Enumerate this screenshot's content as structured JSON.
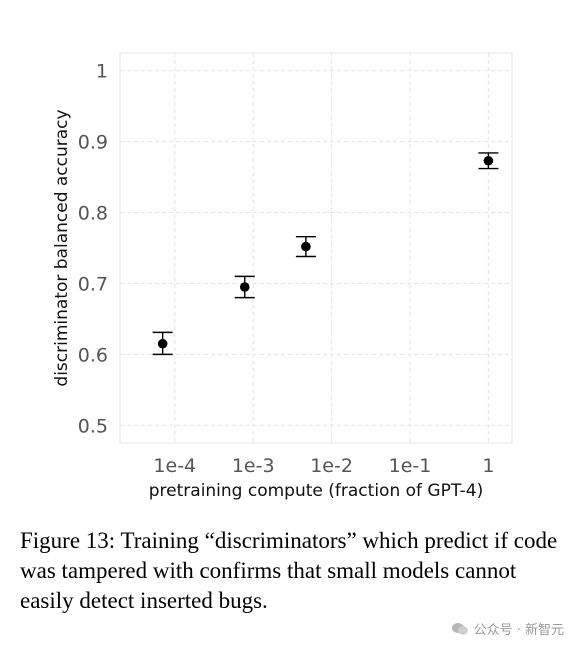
{
  "chart_data": {
    "type": "scatter",
    "title": "",
    "xlabel": "pretraining compute (fraction of GPT-4)",
    "ylabel": "discriminator balanced accuracy",
    "x_scale": "log",
    "x_ticks": [
      0.0001,
      0.001,
      0.01,
      0.1,
      1
    ],
    "x_tick_labels": [
      "1e-4",
      "1e-3",
      "1e-2",
      "1e-1",
      "1"
    ],
    "xlim": [
      2e-05,
      2.0
    ],
    "y_ticks": [
      0.5,
      0.6,
      0.7,
      0.8,
      0.9,
      1.0
    ],
    "y_tick_labels": [
      "0.5",
      "0.6",
      "0.7",
      "0.8",
      "0.9",
      "1"
    ],
    "ylim": [
      0.475,
      1.025
    ],
    "grid": true,
    "points": [
      {
        "x": 7e-05,
        "y": 0.615,
        "err_low": 0.6,
        "err_high": 0.631
      },
      {
        "x": 0.00078,
        "y": 0.695,
        "err_low": 0.68,
        "err_high": 0.71
      },
      {
        "x": 0.0047,
        "y": 0.752,
        "err_low": 0.738,
        "err_high": 0.766
      },
      {
        "x": 1.0,
        "y": 0.873,
        "err_low": 0.862,
        "err_high": 0.884
      }
    ]
  },
  "caption": "Figure 13: Training “discriminators” which predict if code was tampered with confirms that small models cannot easily detect inserted bugs.",
  "watermark": {
    "text": "公众号 · 新智元",
    "icon": "wechat-icon"
  }
}
